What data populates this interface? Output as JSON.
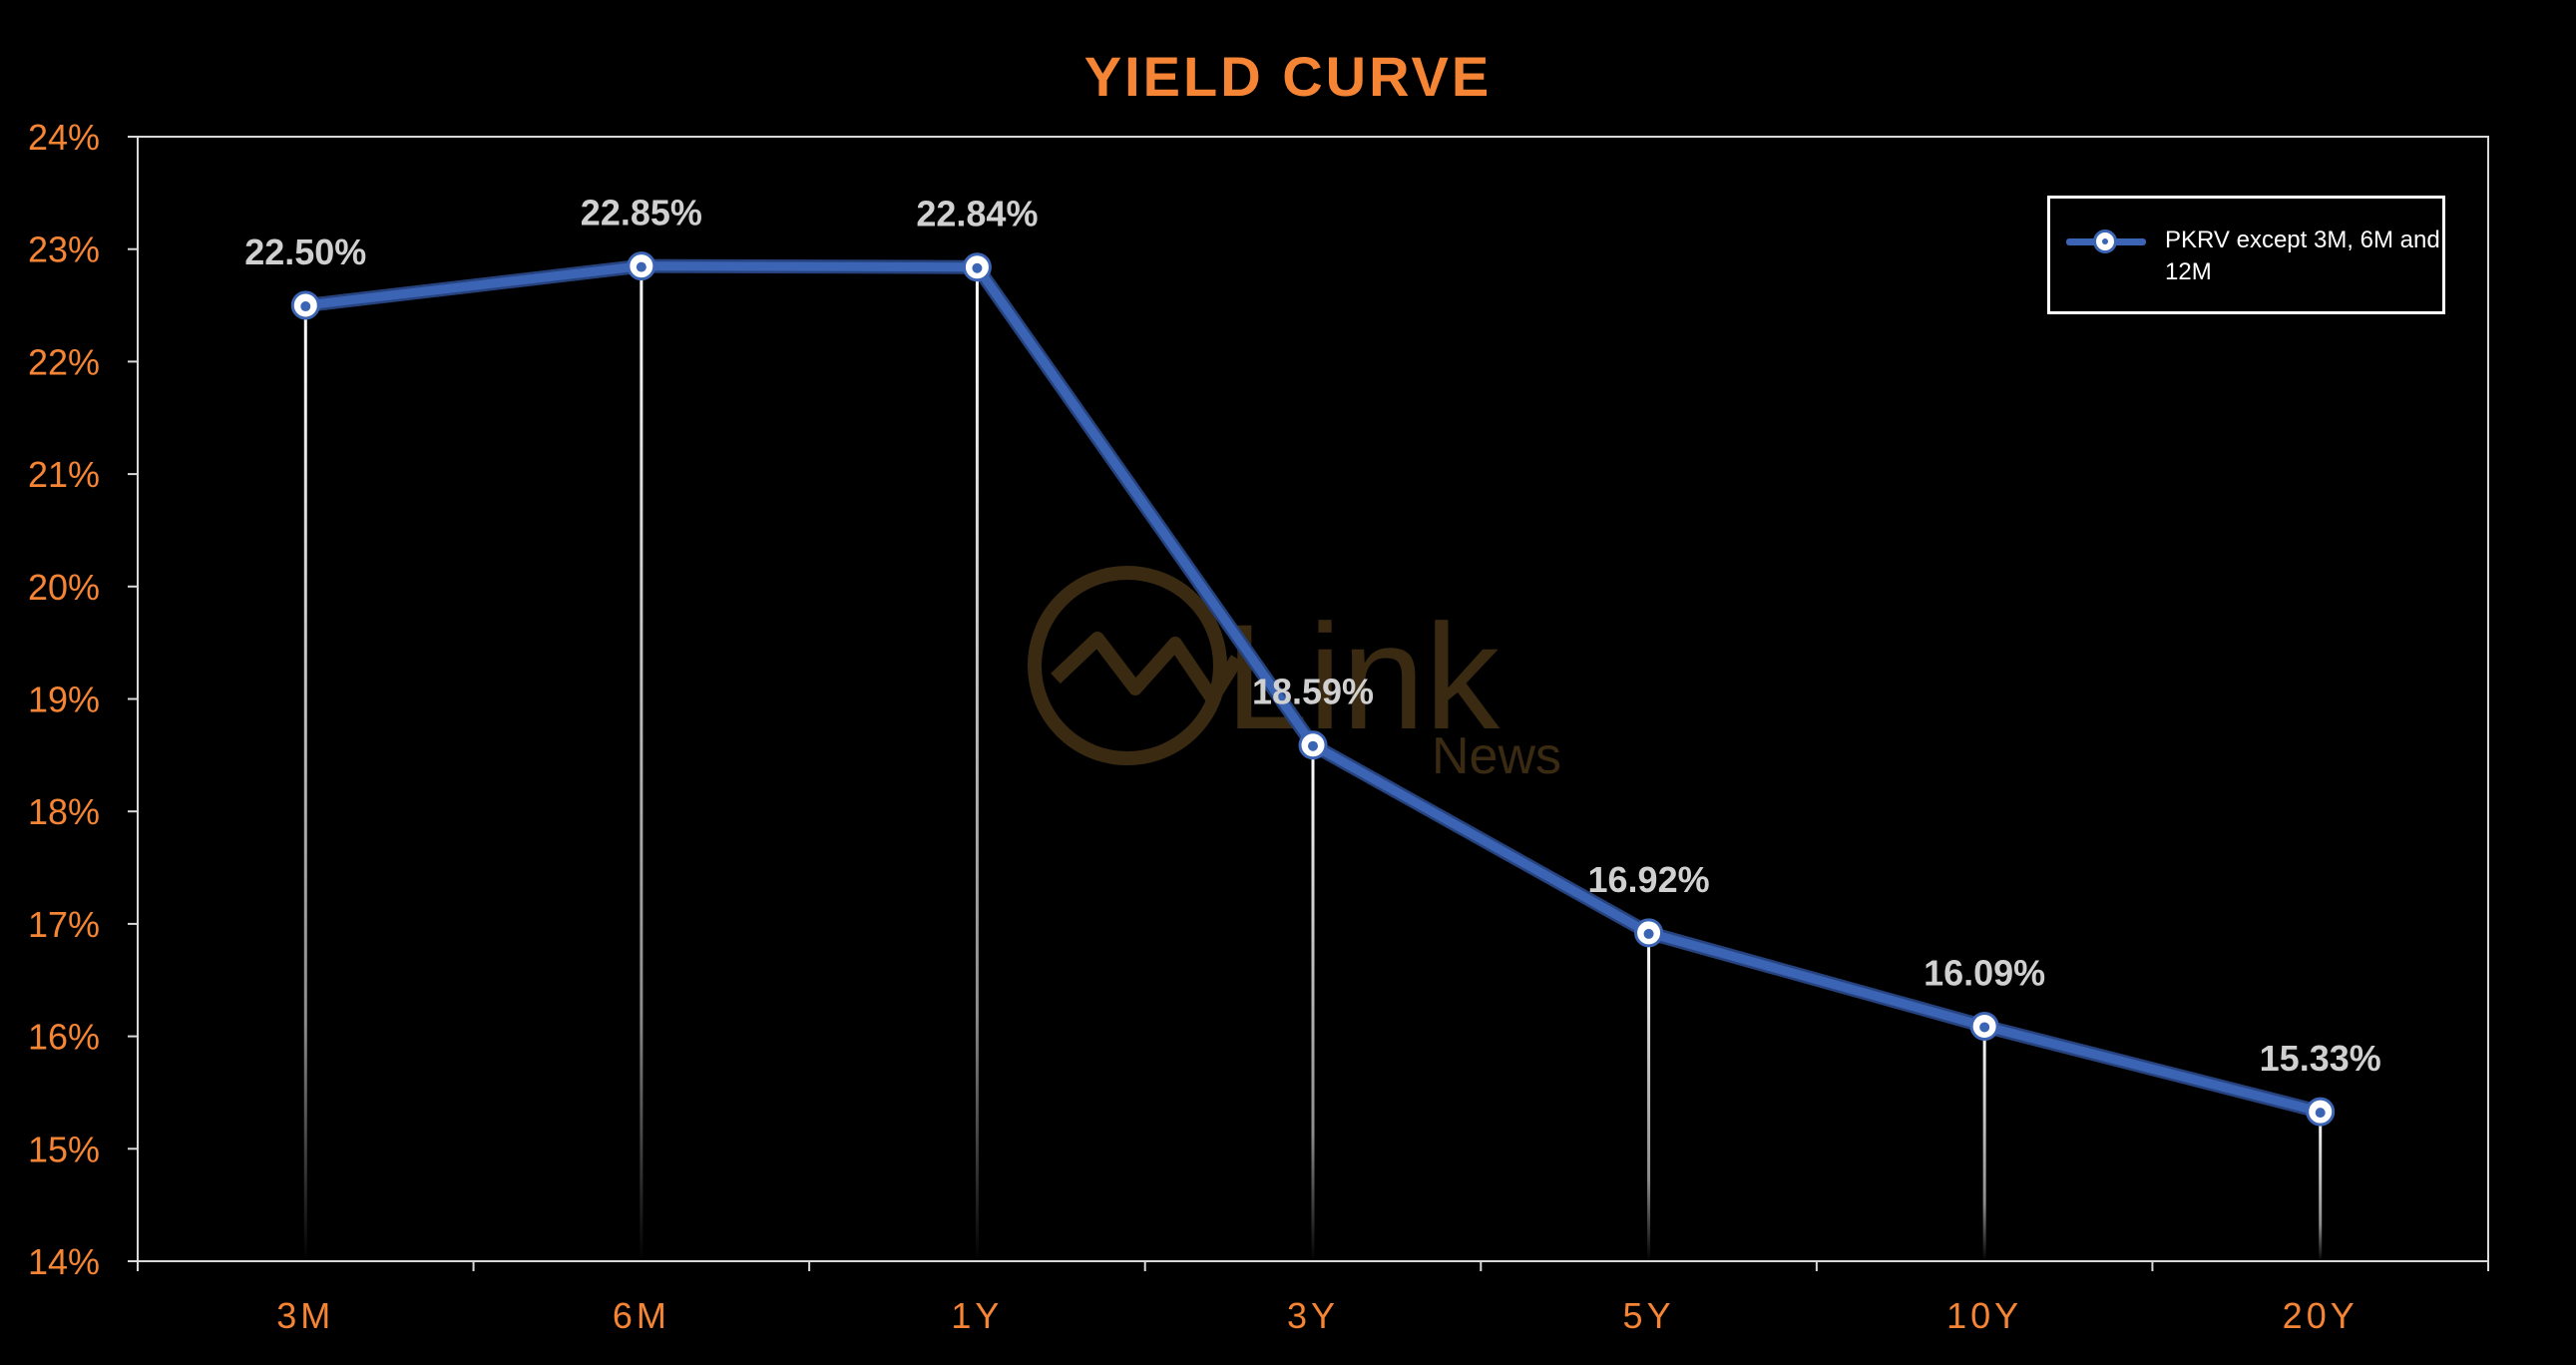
{
  "chart_data": {
    "type": "line",
    "title": "YIELD CURVE",
    "categories": [
      "3M",
      "6M",
      "1Y",
      "3Y",
      "5Y",
      "10Y",
      "20Y"
    ],
    "series": [
      {
        "name": "PKRV except 3M, 6M and 12M",
        "values": [
          22.5,
          22.85,
          22.84,
          18.59,
          16.92,
          16.09,
          15.33
        ],
        "labels": [
          "22.50%",
          "22.85%",
          "22.84%",
          "18.59%",
          "16.92%",
          "16.09%",
          "15.33%"
        ]
      }
    ],
    "ylim": [
      14,
      24
    ],
    "yticks": [
      "14%",
      "15%",
      "16%",
      "17%",
      "18%",
      "19%",
      "20%",
      "21%",
      "22%",
      "23%",
      "24%"
    ],
    "grid": false,
    "drop_lines": true,
    "legend_position": "top-right"
  },
  "watermark": {
    "brand": "Link",
    "sub": "News"
  },
  "colors": {
    "background": "#000000",
    "title": "#f58535",
    "axis_text": "#f58535",
    "axis_line": "#d9d9d9",
    "series": "#3c64b4",
    "data_label": "#d0d0d0",
    "watermark": "#3a2a12"
  }
}
